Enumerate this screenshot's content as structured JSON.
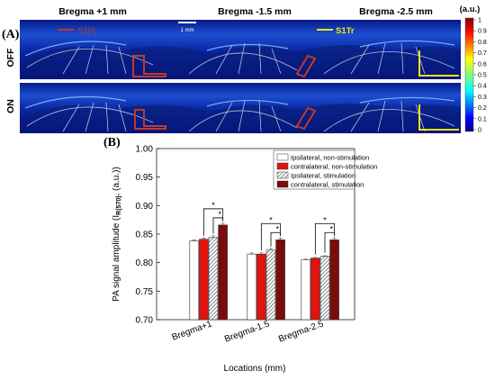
{
  "panel_a": {
    "label": "(A)",
    "columns": [
      "Bregma +1 mm",
      "Bregma -1.5 mm",
      "Bregma -2.5 mm"
    ],
    "rows": [
      "OFF",
      "ON"
    ],
    "scalebar_label": "1 mm",
    "roi_labels": [
      {
        "text": "S1FL",
        "color": "#c0392b"
      },
      {
        "text": "S1Tr",
        "color": "#f1e40f"
      }
    ],
    "colorbar": {
      "unit": "(a.u.)",
      "ticks": [
        "1",
        "0.9",
        "0.8",
        "0.7",
        "0.6",
        "0.5",
        "0.4",
        "0.3",
        "0.2",
        "0.1",
        "0"
      ]
    }
  },
  "panel_b": {
    "label": "(B)"
  },
  "chart_data": {
    "type": "bar",
    "title": "",
    "xlabel": "Locations (mm)",
    "ylabel": "PA signal amplitude (I",
    "ylabel_sub": "R(570)",
    "ylabel_tail": ", (a.u.))",
    "categories": [
      "Bregma+1",
      "Bregma-1.5",
      "Bregma-2.5"
    ],
    "ylim": [
      0.7,
      1.0
    ],
    "yticks": [
      "0.70",
      "0.75",
      "0.80",
      "0.85",
      "0.90",
      "0.95",
      "1.00"
    ],
    "legend_position": "top-right",
    "series": [
      {
        "name": "Ipsilateral, non-stimulation",
        "values": [
          0.838,
          0.815,
          0.805
        ],
        "errors": [
          0.002,
          0.002,
          0.001
        ],
        "style": "white"
      },
      {
        "name": "contralateral, non-stimulation",
        "values": [
          0.841,
          0.815,
          0.808
        ],
        "errors": [
          0.002,
          0.002,
          0.001
        ],
        "style": "red"
      },
      {
        "name": "Ipsilateral,  stimulation",
        "values": [
          0.844,
          0.822,
          0.811
        ],
        "errors": [
          0.003,
          0.003,
          0.001
        ],
        "style": "hatch"
      },
      {
        "name": "contralateral, stimulation",
        "values": [
          0.866,
          0.84,
          0.84
        ],
        "errors": [
          0.003,
          0.003,
          0.003
        ],
        "style": "darkred"
      }
    ],
    "significance_marker": "*",
    "colors": {
      "red": "#e0140e",
      "darkred": "#7a0c0c",
      "white": "#ffffff",
      "hatch": "#9a9a9a"
    }
  }
}
